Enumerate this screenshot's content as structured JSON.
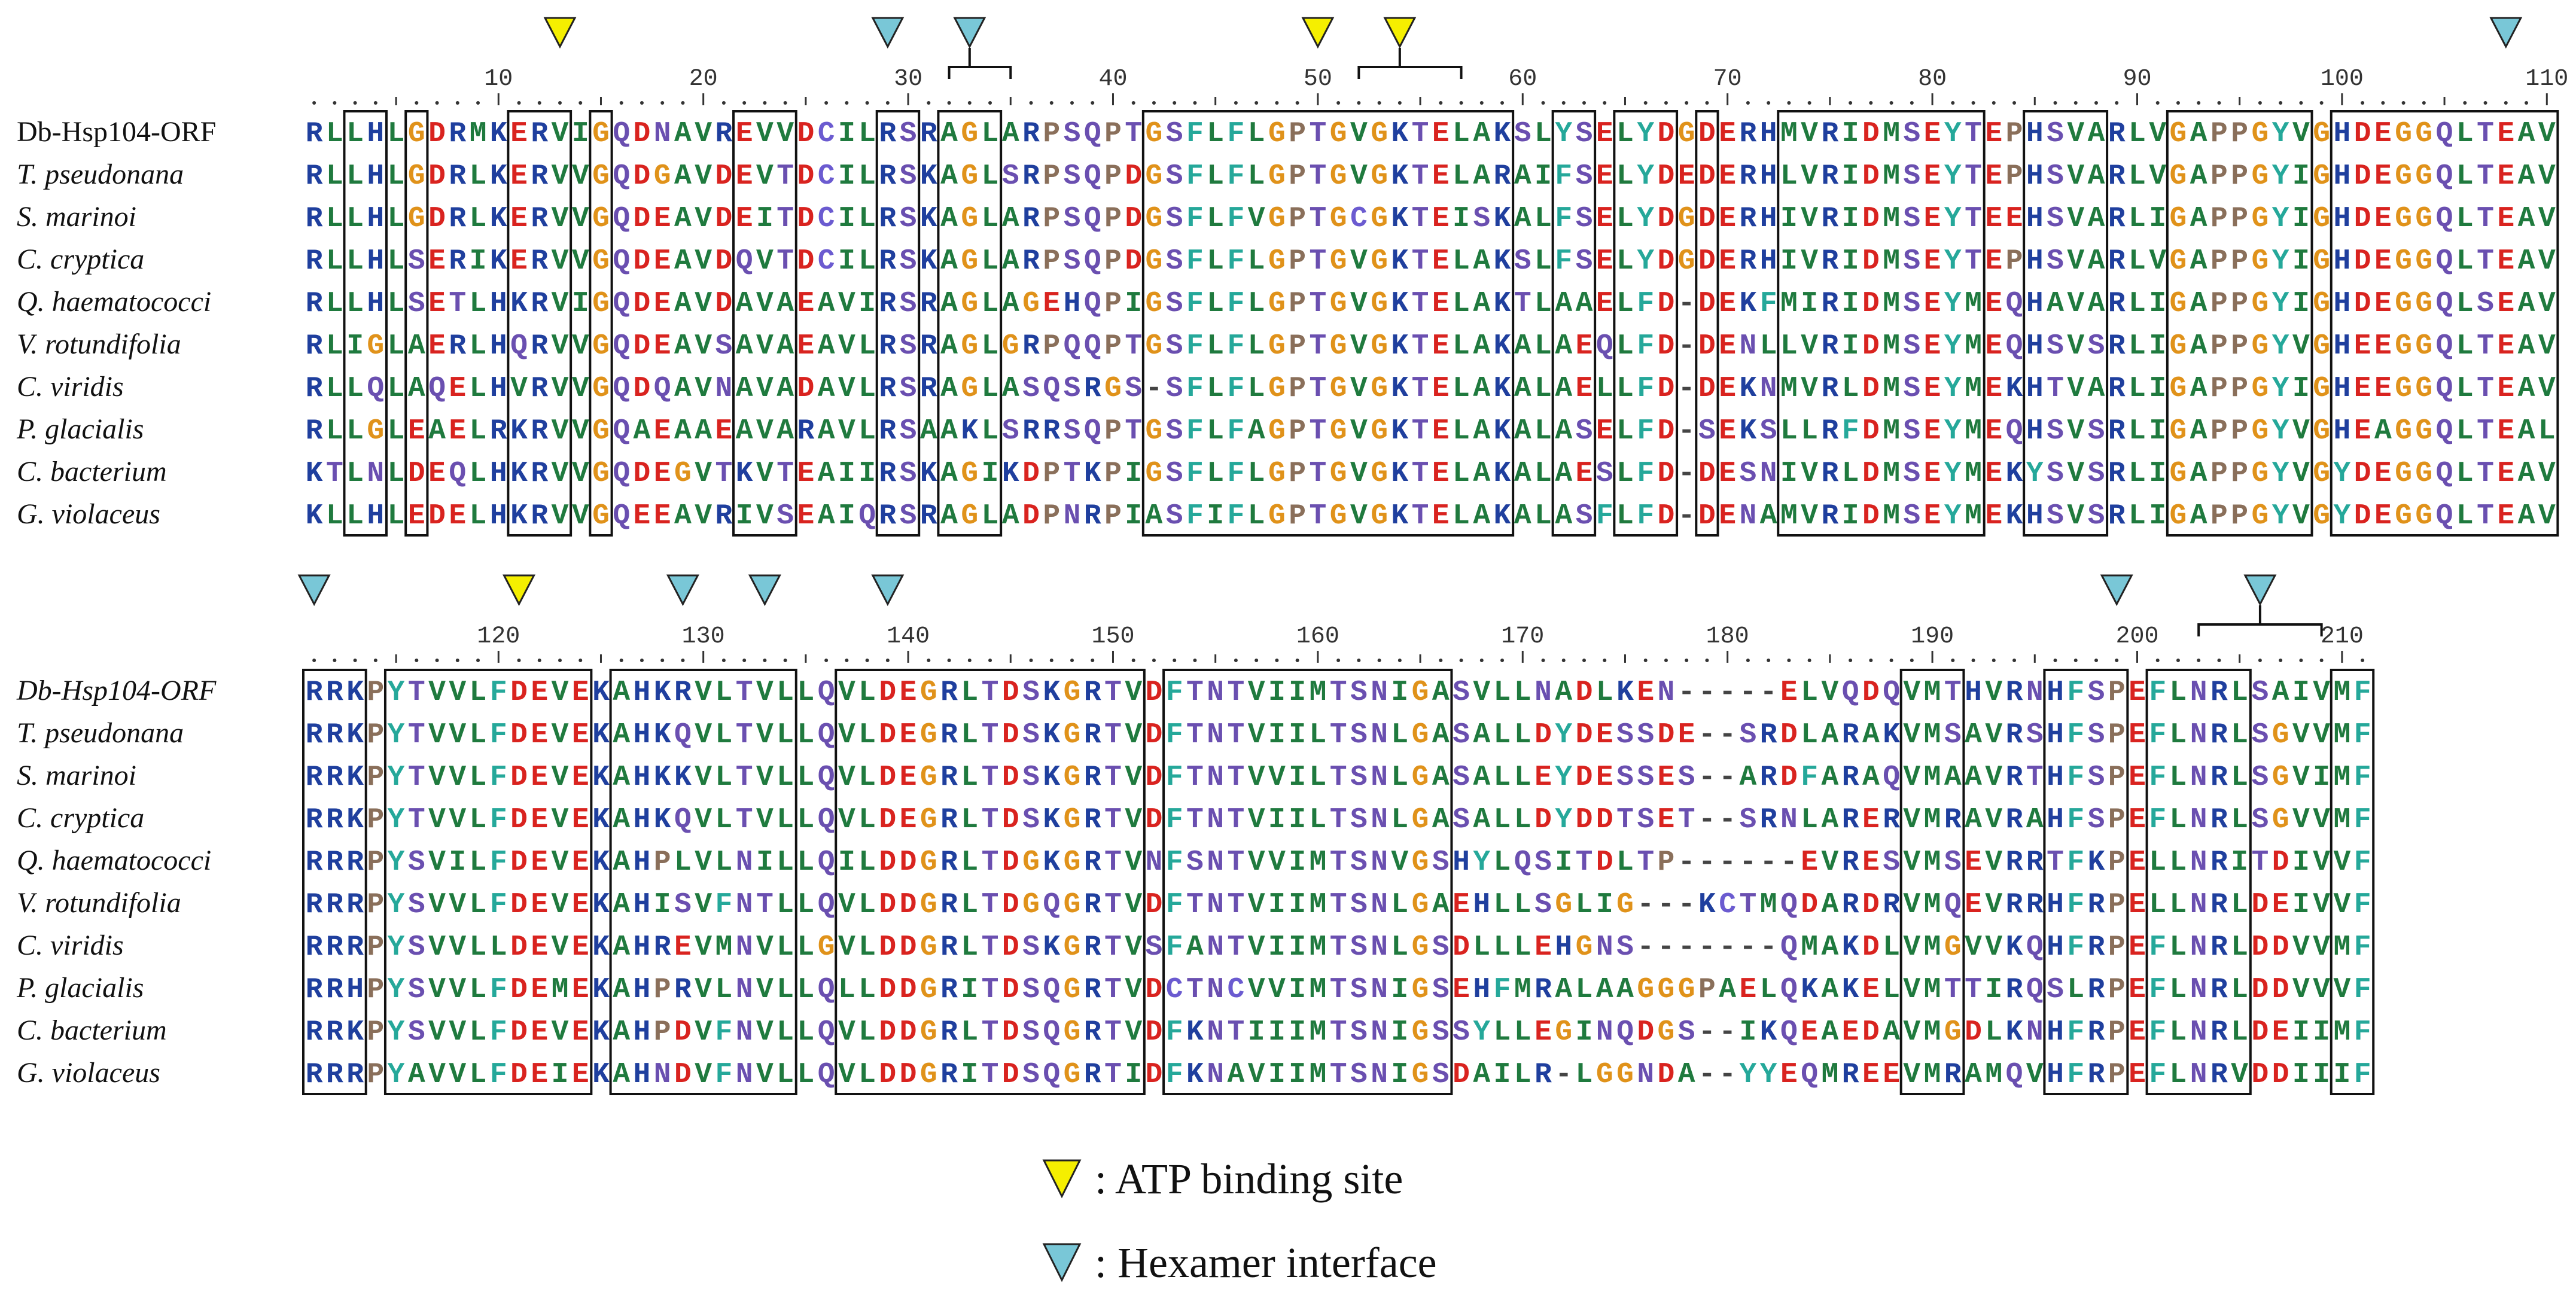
{
  "figure": {
    "block1": {
      "start": 1,
      "ruler_ticks": [
        "10",
        "20",
        "30",
        "40",
        "50",
        "60",
        "70",
        "80",
        "90",
        "100",
        "110"
      ],
      "species": [
        {
          "name": "Db-Hsp104-ORF",
          "italic": false
        },
        {
          "name": "T. pseudonana",
          "italic": true
        },
        {
          "name": "S. marinoi",
          "italic": true
        },
        {
          "name": "C. cryptica",
          "italic": true
        },
        {
          "name": "Q. haematococci",
          "italic": true
        },
        {
          "name": "V. rotundifolia",
          "italic": true
        },
        {
          "name": "C. viridis",
          "italic": true
        },
        {
          "name": "P. glacialis",
          "italic": true
        },
        {
          "name": "C. bacterium",
          "italic": true
        },
        {
          "name": "G. violaceus",
          "italic": true
        }
      ],
      "sequences": [
        "RLLHLGDRMKERVIGQDNAVREVVDCILRSRAGLARPSQPTGSFLFLGPTGVGKTELAKSLYSELYDGDERHMVRIDMSEYTEPHSVARLVGAPPGYVGHDEGGQLTEAV",
        "RLLHLGDRLKERVVGQDGAVDEVTDCILRSKAGLSRPSQPDGSFLFLGPTGVGKTELARAIFSELYDEDERHLVRIDMSEYTEPHSVARLVGAPPGYIGHDEGGQLTEAV",
        "RLLHLGDRLKERVVGQDEAVDEITDCILRSKAGLARPSQPDGSFLFVGPTGCGKTEISKALFSELYDGDERHIVRIDMSEYTEEHSVARLIGAPPGYIGHDEGGQLTEAV",
        "RLLHLSERIKERVVGQDEAVDQVTDCILRSKAGLARPSQPDGSFLFLGPTGVGKTELAKSLFSELYDGDERHIVRIDMSEYTEPHSVARLVGAPPGYIGHDEGGQLTEAV",
        "RLLHLSETLHKRVIGQDEAVDAVAEAVIRSRAGLAGEHQPIGSFLFLGPTGVGKTELAKTLAAELFD-DEKFMIRIDMSEYMEQHAVARLIGAPPGYIGHDEGGQLSEAV",
        "RLIGLAERLHQRVVGQDEAVSAVAEAVLRSRAGLGRPQQPTGSFLFLGPTGVGKTELAKALAEQLFD-DENLLVRIDMSEYMEQHSVSRLIGAPPGYVGHEEGGQLTEAV",
        "RLLQLAQELHVRVVGQDQAVNAVADAVLRSRAGLASQSRGS-SFLFLGPTGVGKTELAKALAELLFD-DEKNMVRLDMSEYMEKHTVARLIGAPPGYIGHEEGGQLTEAV",
        "RLLGLEAELRKRVVGQAEAAEAVARAVLRSAAKLSRRSQPTGSFLFAGPTGVGKTELAKALASELFD-SEKSLLRFDMSEYMEQHSVSRLIGAPPGYVGHEAGGQLTEAL",
        "KTLNLDEQLHKRVVGQDEGVTKVTEAIIRSKAGIKDPTKPIGSFLFLGPTGVGKTELAKALAESLFD-DESNIVRLDMSEYMEKYSVSRLIGAPPGYVGYDEGGQLTEAV",
        "KLLHLEDELHKRVVGQEEAVRIVSEAIQRSRAGLADPNRPIASFIFLGPTGVGKTELAKALASFLFD-DENAMVRIDMSEYMEKHSVSRLIGAPPGYVGYDEGGQLTEAV"
      ],
      "boxed_columns": [
        3,
        4,
        6,
        11,
        12,
        13,
        15,
        22,
        23,
        24,
        29,
        30,
        32,
        33,
        34,
        42,
        43,
        44,
        45,
        46,
        47,
        48,
        49,
        50,
        51,
        52,
        53,
        54,
        55,
        56,
        57,
        58,
        59,
        62,
        63,
        65,
        66,
        67,
        69,
        73,
        74,
        75,
        76,
        77,
        78,
        79,
        80,
        81,
        82,
        85,
        86,
        87,
        88,
        92,
        93,
        94,
        95,
        96,
        97,
        98,
        100,
        101,
        102,
        103,
        104,
        105,
        106,
        107,
        108,
        109,
        110
      ]
    },
    "block2": {
      "start": 111,
      "ruler_ticks": [
        "120",
        "130",
        "140",
        "150",
        "160",
        "170",
        "180",
        "190",
        "200",
        "210"
      ],
      "species": [
        {
          "name": "Db-Hsp104-ORF",
          "italic": true
        },
        {
          "name": "T. pseudonana",
          "italic": true
        },
        {
          "name": "S. marinoi",
          "italic": true
        },
        {
          "name": "C. cryptica",
          "italic": true
        },
        {
          "name": "Q. haematococci",
          "italic": true
        },
        {
          "name": "V. rotundifolia",
          "italic": true
        },
        {
          "name": "C. viridis",
          "italic": true
        },
        {
          "name": "P. glacialis",
          "italic": true
        },
        {
          "name": "C. bacterium",
          "italic": true
        },
        {
          "name": "G. violaceus",
          "italic": true
        }
      ],
      "sequences": [
        "RRKPYTVVLFDEVEKAHKRVLTVLLQVLDEGRLTDSKGRTVDFTNTVIIMTSNIGASVLLNADLKEN-----ELVQDQVMTHVRNHFSPEFLNRLSAIVMF",
        "RRKPYTVVLFDEVEKAHKQVLTVLLQVLDEGRLTDSKGRTVDFTNTVIILTSNLGASALLDYDESSDE--SRDLARAKVMSAVRSHFSPEFLNRLSGVVMF",
        "RRKPYTVVLFDEVEKAHKKVLTVLLQVLDEGRLTDSKGRTVDFTNTVVILTSNLGASALLEYDESSES--ARDFARAQVMAAVRTHFSPEFLNRLSGVIMF",
        "RRKPYTVVLFDEVEKAHKQVLTVLLQVLDEGRLTDSKGRTVDFTNTVIILTSNLGASALLDYDDTSET--SRNLARERVMRAVRAHFSPEFLNRLSGVVMF",
        "RRRPYSVILFDEVEKAHPLVLNILLQILDDGRLTDGKGRTVNFSNTVVIMTSNVGSHYLQSITDLTP------EVRESVMSEVRRTFKPELLNRITDIVVF",
        "RRRPYSVVLFDEVEKAHISVFNTLLQVLDDGRLTDGQGRTVDFTNTVIIMTSNLGAEHLLSGLIG---KCTMQDARDRVMQEVRRHFRPELLNRLDEIVVF",
        "RRRPYSVVLLDEVEKAHREVMNVLLGVLDDGRLTDSKGRTVSFANTVIIMTSNLGSDLLLEHGNS-------QMAKDLVMGVVKQHFRPEFLNRLDDVVMF",
        "RRHPYSVVLFDEMEKAHPRVLNVLLQLLDDGRITDSQGRTVDCTNCVVIMTSNIGSEHFMRALAAGGGPAELQKAKELVMTTIRQSLRPEFLNRLDDVVVF",
        "RRKPYSVVLFDEVEKAHPDVFNVLLQVLDDGRLTDSQGRTVDFKNTIIIMTSNIGSSYLLEGINQDGS--IKQEAEDAVMGDLKNHFRPEFLNRLDEIIMF",
        "RRRPYAVVLFDEIEKAHNDVFNVLLQVLDDGRITDSQGRTIDFKNAVIIMTSNIGSDAILR-LGGNDA--YYEQMREEVMRAMQVHFRPEFLNRVDDIIIF"
      ],
      "boxed_columns": [
        111,
        112,
        113,
        115,
        116,
        117,
        118,
        119,
        120,
        121,
        122,
        123,
        124,
        126,
        127,
        128,
        129,
        130,
        131,
        132,
        133,
        134,
        137,
        138,
        139,
        140,
        141,
        142,
        143,
        144,
        145,
        146,
        147,
        148,
        149,
        150,
        151,
        153,
        154,
        155,
        156,
        157,
        158,
        159,
        160,
        161,
        162,
        163,
        164,
        165,
        166,
        189,
        190,
        191,
        196,
        197,
        198,
        199,
        201,
        202,
        203,
        204,
        205,
        210,
        211
      ]
    },
    "annotations": {
      "block1_markers": [
        {
          "pos": 13,
          "type": "atp"
        },
        {
          "pos": 29,
          "type": "hex"
        },
        {
          "pos": 33,
          "type": "hex",
          "bracket": [
            32,
            35
          ]
        },
        {
          "pos": 50,
          "type": "atp"
        },
        {
          "pos": 54,
          "type": "atp",
          "bracket": [
            52,
            57
          ]
        },
        {
          "pos": 108,
          "type": "hex"
        }
      ],
      "block2_markers": [
        {
          "pos": 111,
          "type": "hex"
        },
        {
          "pos": 121,
          "type": "atp"
        },
        {
          "pos": 129,
          "type": "hex"
        },
        {
          "pos": 133,
          "type": "hex"
        },
        {
          "pos": 139,
          "type": "hex"
        },
        {
          "pos": 199,
          "type": "hex"
        },
        {
          "pos": 206,
          "type": "hex",
          "bracket": [
            203,
            209
          ]
        }
      ]
    },
    "legend": {
      "atp_label": ": ATP binding site",
      "hex_label": ": Hexamer interface"
    }
  },
  "colors": {
    "atp_marker": "#f5ef00",
    "hex_marker": "#79c7d7",
    "hydrophobic": "#1f7a3e",
    "acidic": "#d9231f",
    "basic": "#1f3f9e",
    "glycine": "#e0921a",
    "proline": "#8a6f5a",
    "polar": "#6a4fb0",
    "aromatic": "#25a89a",
    "cysteine": "#6b5bd0",
    "gap": "#444444",
    "box_stroke": "#111111"
  }
}
